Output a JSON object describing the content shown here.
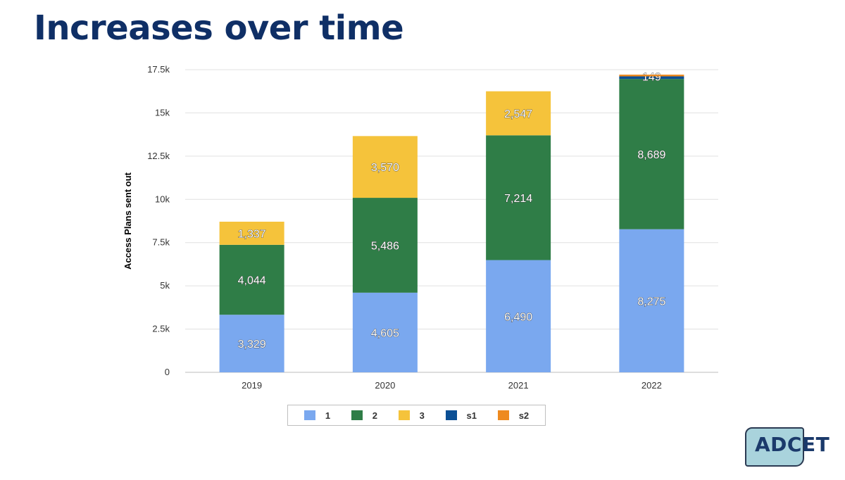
{
  "slide": {
    "title": "Increases over time"
  },
  "logo": {
    "text": "ADCET"
  },
  "chart_data": {
    "type": "bar",
    "stacked": true,
    "title": "",
    "xlabel": "",
    "ylabel": "Access Plans sent out",
    "ylim": [
      0,
      17500
    ],
    "yticks": [
      0,
      2500,
      5000,
      7500,
      10000,
      12500,
      15000,
      17500
    ],
    "ytick_labels": [
      "0",
      "2.5k",
      "5k",
      "7.5k",
      "10k",
      "12.5k",
      "15k",
      "17.5k"
    ],
    "categories": [
      "2019",
      "2020",
      "2021",
      "2022"
    ],
    "series": [
      {
        "name": "1",
        "color": "#7aa8ef",
        "values": [
          3329,
          4605,
          6490,
          8275
        ],
        "labels": [
          "3,329",
          "4,605",
          "6,490",
          "8,275"
        ]
      },
      {
        "name": "2",
        "color": "#2f7d47",
        "values": [
          4044,
          5486,
          7214,
          8689
        ],
        "labels": [
          "4,044",
          "5,486",
          "7,214",
          "8,689"
        ]
      },
      {
        "name": "3",
        "color": "#f5c33b",
        "values": [
          1337,
          3570,
          2547,
          0
        ],
        "labels": [
          "1,337",
          "3,570",
          "2,547",
          ""
        ]
      },
      {
        "name": "s1",
        "color": "#0b4f94",
        "values": [
          0,
          0,
          0,
          149
        ],
        "labels": [
          "",
          "",
          "",
          "149"
        ]
      },
      {
        "name": "s2",
        "color": "#ee8a1f",
        "values": [
          0,
          0,
          0,
          100
        ],
        "labels": [
          "",
          "",
          "",
          ""
        ]
      }
    ],
    "grid": true,
    "legend": "bottom"
  }
}
